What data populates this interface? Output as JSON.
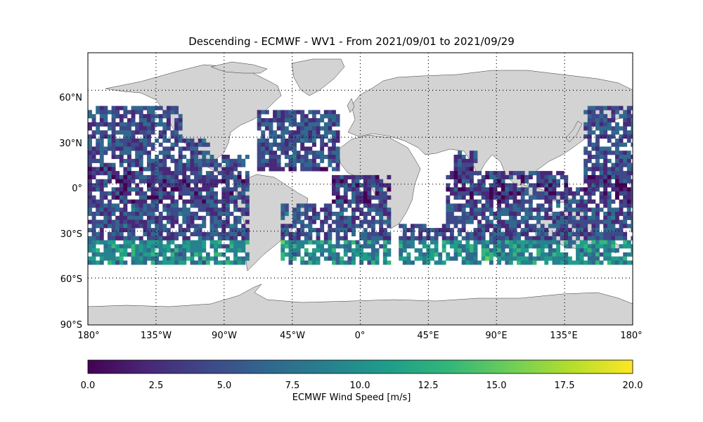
{
  "title": "Descending - ECMWF - WV1 - From 2021/09/01 to 2021/09/29",
  "map": {
    "lon_ticks": [
      "180°",
      "135°W",
      "90°W",
      "45°W",
      "0°",
      "45°E",
      "90°E",
      "135°E",
      "180°"
    ],
    "lat_ticks": [
      "60°N",
      "30°N",
      "0°",
      "30°S",
      "60°S",
      "90°S"
    ],
    "land_color": "#d3d3d3",
    "coverage_lat_range_deg": [
      -50,
      50
    ]
  },
  "colorbar": {
    "label": "ECMWF Wind Speed [m/s]",
    "ticks": [
      "0.0",
      "2.5",
      "5.0",
      "7.5",
      "10.0",
      "12.5",
      "15.0",
      "17.5",
      "20.0"
    ],
    "range": [
      0,
      20
    ],
    "colormap": "viridis",
    "colors": [
      "#440154",
      "#482878",
      "#3e4989",
      "#31688e",
      "#26828e",
      "#1f9e89",
      "#35b779",
      "#6ece58",
      "#b5de2b",
      "#fde725"
    ]
  }
}
